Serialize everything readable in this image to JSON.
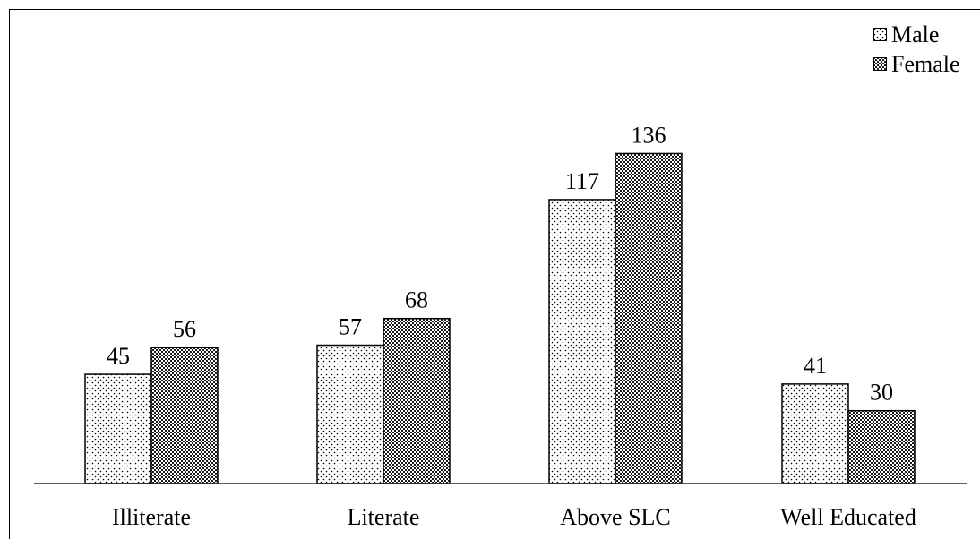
{
  "chart_data": {
    "type": "bar",
    "categories": [
      "Illiterate",
      "Literate",
      "Above SLC",
      "Well Educated"
    ],
    "series": [
      {
        "name": "Male",
        "values": [
          45,
          57,
          117,
          41
        ],
        "pattern": "dotted",
        "color": "#ffffff"
      },
      {
        "name": "Female",
        "values": [
          56,
          68,
          136,
          30
        ],
        "pattern": "checkered",
        "color": "#555555"
      }
    ],
    "ylim": [
      0,
      150
    ],
    "grid": false,
    "legend_position": "top-right"
  }
}
